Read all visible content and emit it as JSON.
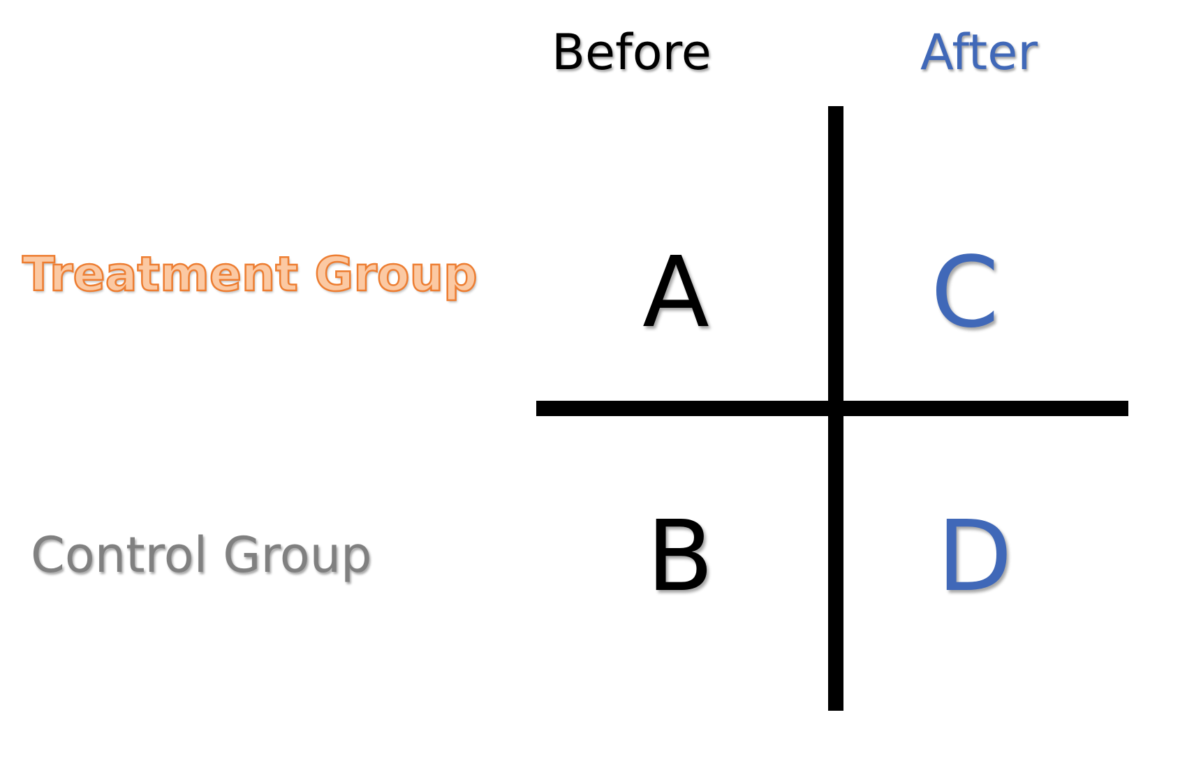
{
  "columns": {
    "before": "Before",
    "after": "After"
  },
  "rows": {
    "treatment": "Treatment Group",
    "control": "Control Group"
  },
  "cells": {
    "a": "A",
    "b": "B",
    "c": "C",
    "d": "D"
  },
  "colors": {
    "treatment": "#ed7d31",
    "control": "#808080",
    "after": "#4068b8",
    "before": "#000000"
  }
}
